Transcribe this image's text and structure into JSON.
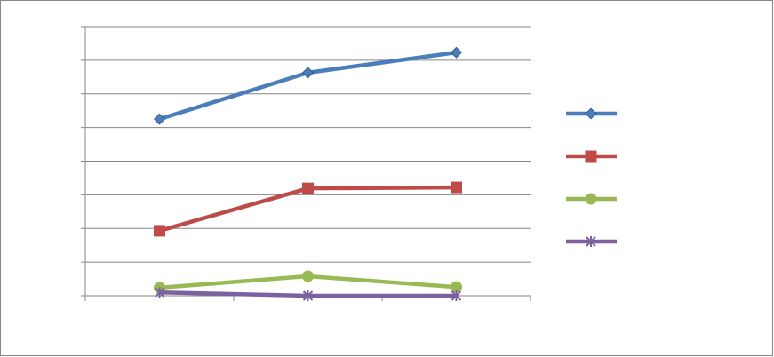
{
  "chart_data": {
    "type": "line",
    "categories": [
      null,
      null,
      null
    ],
    "ylim": [
      0,
      8
    ],
    "yticks": [
      0,
      1,
      2,
      3,
      4,
      5,
      6,
      7,
      8
    ],
    "grid": true,
    "legend": "right",
    "series": [
      {
        "color": "#4a7ebb",
        "marker": "diamond",
        "values": [
          5.25,
          6.63,
          7.23
        ]
      },
      {
        "color": "#be4b48",
        "marker": "square",
        "values": [
          1.93,
          3.19,
          3.22
        ]
      },
      {
        "color": "#98b954",
        "marker": "circle",
        "values": [
          0.24,
          0.58,
          0.26
        ]
      },
      {
        "color": "#7d60a0",
        "marker": "star",
        "values": [
          0.1,
          0,
          0
        ]
      }
    ]
  }
}
